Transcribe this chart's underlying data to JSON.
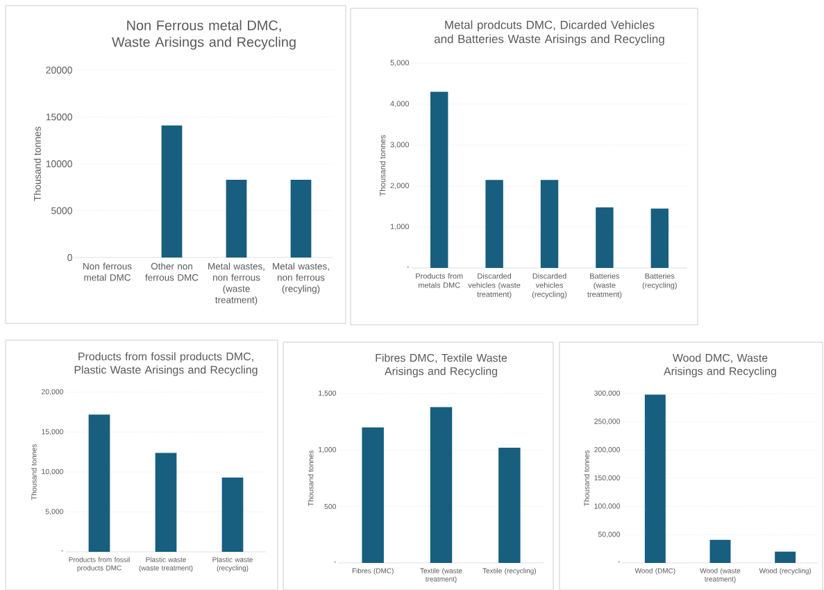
{
  "chart_data": [
    {
      "type": "bar",
      "title": "Non Ferrous metal DMC, Waste Arisings and Recycling",
      "ylabel": "Thousand tonnes",
      "categories": [
        "Non ferrous metal DMC",
        "Other non ferrous DMC",
        "Metal wastes, non ferrous (waste treatment)",
        "Metal wastes, non ferrous (recyling)"
      ],
      "values": [
        0,
        14100,
        8300,
        8300
      ],
      "color": "#175e7f",
      "ylim": [
        0,
        20000
      ],
      "yticks": [
        0,
        5000,
        10000,
        15000,
        20000
      ],
      "grid": "y"
    },
    {
      "type": "bar",
      "title": "Metal prodcuts DMC, Dicarded Vehicles and Batteries Waste Arisings and Recycling",
      "ylabel": "Thousand tonnes",
      "categories": [
        "Products from metals DMC",
        "Discarded vehicles (waste treatment)",
        "Discarded vehicles (recycling)",
        "Batteries (waste treatment)",
        "Batteries (recycling)"
      ],
      "values": [
        4300,
        2150,
        2150,
        1480,
        1450
      ],
      "color": "#175e7f",
      "ylim": [
        0,
        5000
      ],
      "yticks": [
        {
          "value": 0,
          "label": "-"
        },
        {
          "value": 1000,
          "label": "1,000"
        },
        {
          "value": 2000,
          "label": "2,000"
        },
        {
          "value": 3000,
          "label": "3,000"
        },
        {
          "value": 4000,
          "label": "4,000"
        },
        {
          "value": 5000,
          "label": "5,000"
        }
      ],
      "grid": "y"
    },
    {
      "type": "bar",
      "title": "Products from fossil products DMC, Plastic Waste Arisings and Recycling",
      "ylabel": "Thousand tonnes",
      "categories": [
        "Products from fossil products DMC",
        "Plastic waste (waste treatment)",
        "Plastic waste (recycling)"
      ],
      "values": [
        17200,
        12400,
        9300
      ],
      "color": "#175e7f",
      "ylim": [
        0,
        20000
      ],
      "yticks": [
        {
          "value": 0,
          "label": "-"
        },
        {
          "value": 5000,
          "label": "5,000"
        },
        {
          "value": 10000,
          "label": "10,000"
        },
        {
          "value": 15000,
          "label": "15,000"
        },
        {
          "value": 20000,
          "label": "20,000"
        }
      ],
      "grid": "y"
    },
    {
      "type": "bar",
      "title": "Fibres DMC, Textile Waste Arisings and Recycling",
      "ylabel": "Thousand tonnes",
      "categories": [
        "Fibres (DMC)",
        "Textile (waste treatment)",
        "Textile (recycling)"
      ],
      "values": [
        1200,
        1380,
        1020
      ],
      "color": "#175e7f",
      "ylim": [
        0,
        1500
      ],
      "yticks": [
        {
          "value": 0,
          "label": "-"
        },
        500,
        {
          "value": 1000,
          "label": "1,000"
        },
        {
          "value": 1500,
          "label": "1,500"
        }
      ],
      "grid": "y"
    },
    {
      "type": "bar",
      "title": "Wood DMC, Waste Arisings and Recycling",
      "ylabel": "Thousand tonnes",
      "categories": [
        "Wood (DMC)",
        "Wood (waste treatment)",
        "Wood (recycling)"
      ],
      "values": [
        298000,
        41000,
        20000
      ],
      "color": "#175e7f",
      "ylim": [
        0,
        300000
      ],
      "yticks": [
        {
          "value": 0,
          "label": "-"
        },
        {
          "value": 50000,
          "label": "50,000"
        },
        {
          "value": 100000,
          "label": "100,000"
        },
        {
          "value": 150000,
          "label": "150,000"
        },
        {
          "value": 200000,
          "label": "200,000"
        },
        {
          "value": 250000,
          "label": "250,000"
        },
        {
          "value": 300000,
          "label": "300,000"
        }
      ],
      "grid": "y"
    }
  ]
}
